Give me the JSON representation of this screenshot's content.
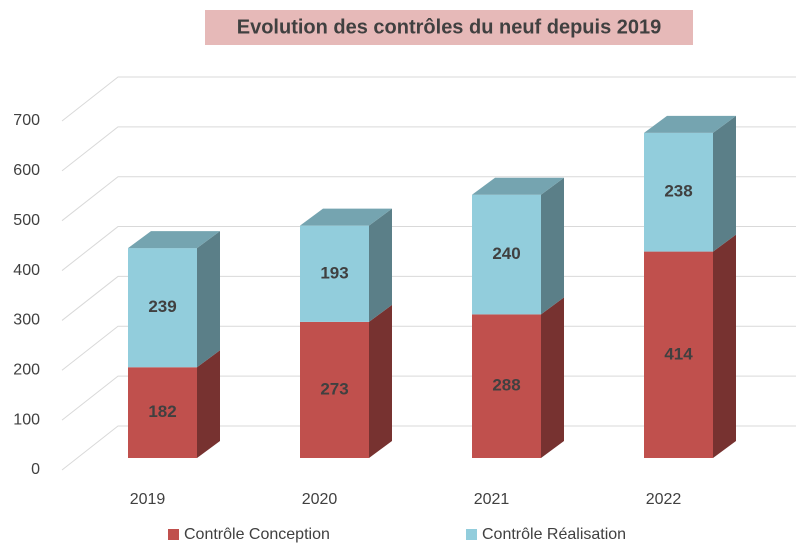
{
  "chart_data": {
    "type": "bar",
    "stacked": true,
    "three_d": true,
    "title": "Evolution des contrôles du neuf depuis 2019",
    "categories": [
      "2019",
      "2020",
      "2021",
      "2022"
    ],
    "series": [
      {
        "name": "Contrôle Conception",
        "color": "#c0504d",
        "values": [
          182,
          273,
          288,
          414
        ]
      },
      {
        "name": "Contrôle Réalisation",
        "color": "#92cddc",
        "values": [
          239,
          193,
          240,
          238
        ]
      }
    ],
    "ylim": [
      0,
      700
    ],
    "yticks": [
      0,
      100,
      200,
      300,
      400,
      500,
      600,
      700
    ],
    "grid": true,
    "legend": "bottom"
  }
}
